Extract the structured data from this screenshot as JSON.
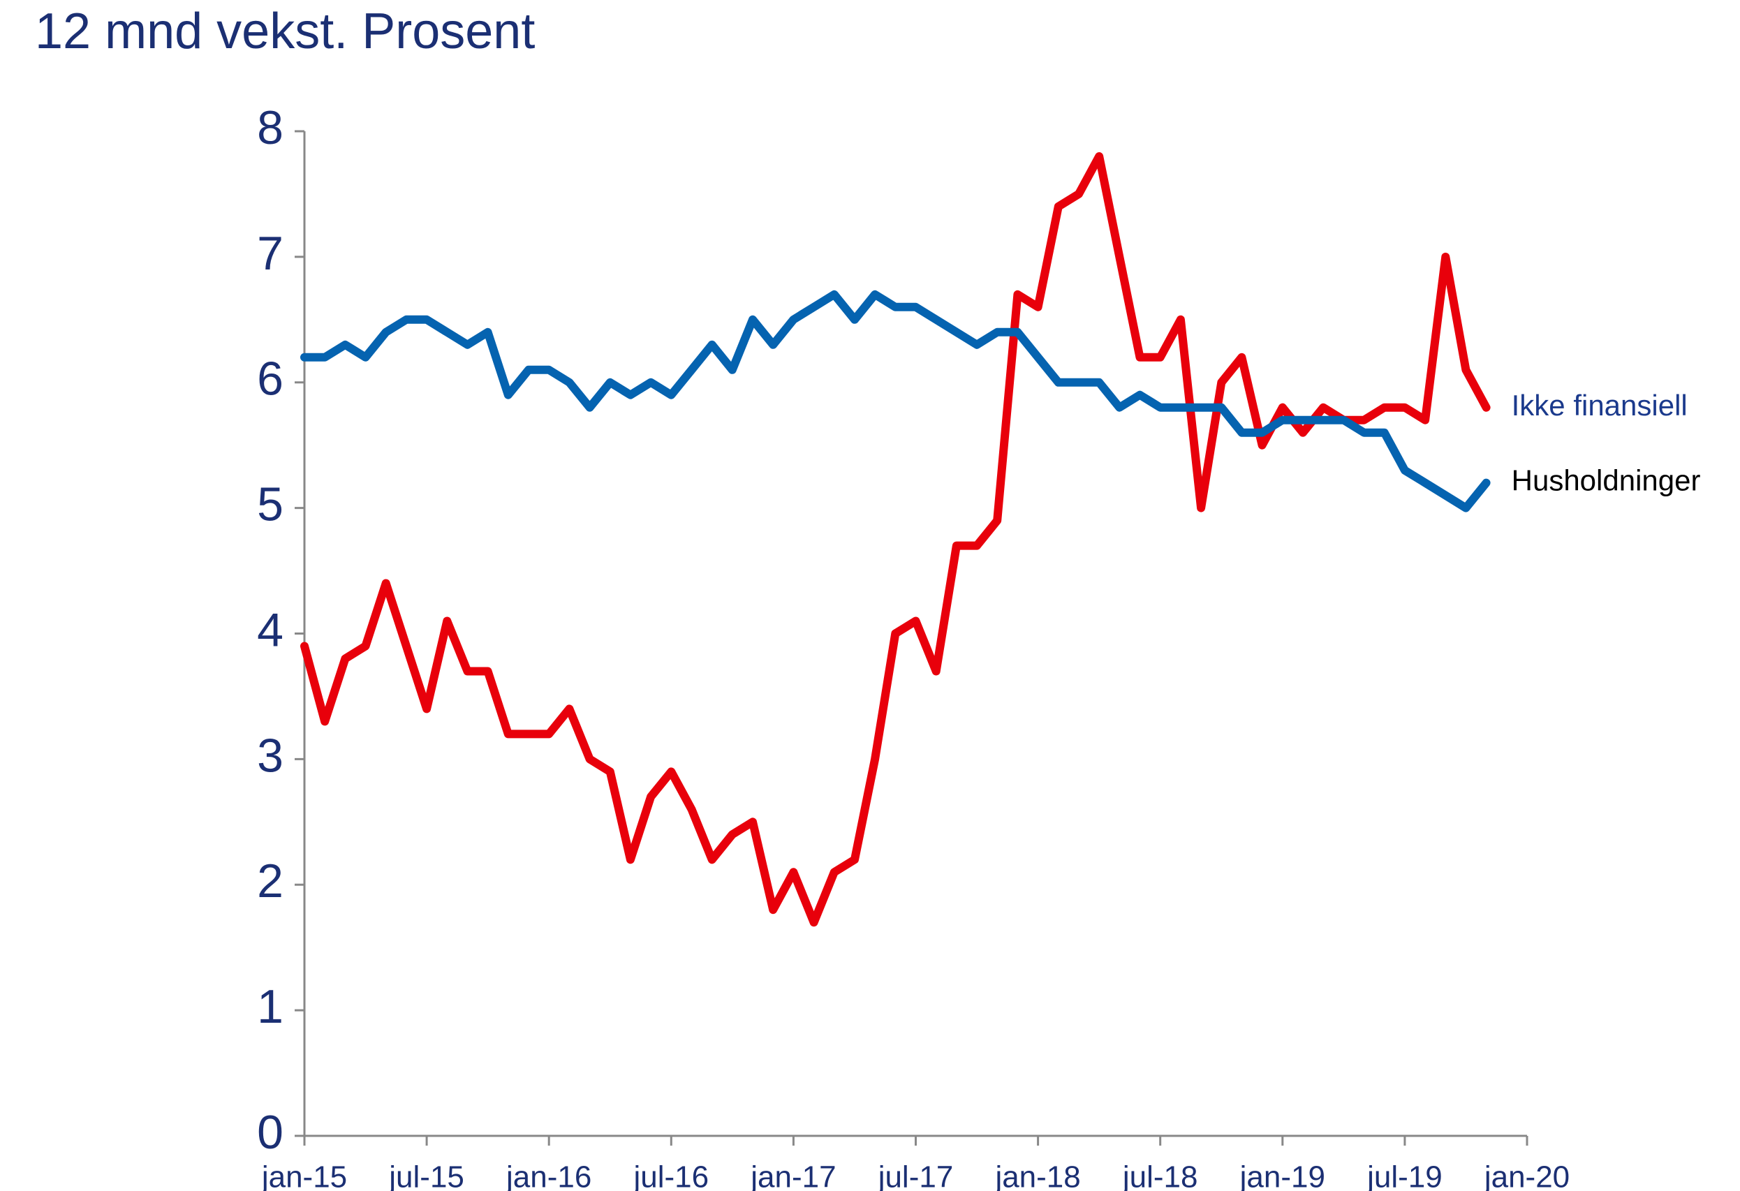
{
  "chart_data": {
    "type": "line",
    "title": "12 mnd vekst. Prosent",
    "x": [
      "2015-01",
      "2015-02",
      "2015-03",
      "2015-04",
      "2015-05",
      "2015-06",
      "2015-07",
      "2015-08",
      "2015-09",
      "2015-10",
      "2015-11",
      "2015-12",
      "2016-01",
      "2016-02",
      "2016-03",
      "2016-04",
      "2016-05",
      "2016-06",
      "2016-07",
      "2016-08",
      "2016-09",
      "2016-10",
      "2016-11",
      "2016-12",
      "2017-01",
      "2017-02",
      "2017-03",
      "2017-04",
      "2017-05",
      "2017-06",
      "2017-07",
      "2017-08",
      "2017-09",
      "2017-10",
      "2017-11",
      "2017-12",
      "2018-01",
      "2018-02",
      "2018-03",
      "2018-04",
      "2018-05",
      "2018-06",
      "2018-07",
      "2018-08",
      "2018-09",
      "2018-10",
      "2018-11",
      "2018-12",
      "2019-01",
      "2019-02",
      "2019-03",
      "2019-04",
      "2019-05",
      "2019-06",
      "2019-07",
      "2019-08",
      "2019-09",
      "2019-10",
      "2019-11"
    ],
    "series": [
      {
        "name": "Ikke finansiell",
        "color": "#e8000b",
        "label_color": "#1b3a8c",
        "values": [
          3.9,
          3.3,
          3.8,
          3.9,
          4.4,
          3.9,
          3.4,
          4.1,
          3.7,
          3.7,
          3.2,
          3.2,
          3.2,
          3.4,
          3.0,
          2.9,
          2.2,
          2.7,
          2.9,
          2.6,
          2.2,
          2.4,
          2.5,
          1.8,
          2.1,
          1.7,
          2.1,
          2.2,
          3.0,
          4.0,
          4.1,
          3.7,
          4.7,
          4.7,
          4.9,
          6.7,
          6.6,
          7.4,
          7.5,
          7.8,
          7.0,
          6.2,
          6.2,
          6.5,
          5.0,
          6.0,
          6.2,
          5.5,
          5.8,
          5.6,
          5.8,
          5.7,
          5.7,
          5.8,
          5.8,
          5.7,
          7.0,
          6.1,
          5.8
        ]
      },
      {
        "name": "Husholdninger",
        "color": "#0563b0",
        "label_color": "#000000",
        "values": [
          6.2,
          6.2,
          6.3,
          6.2,
          6.4,
          6.5,
          6.5,
          6.4,
          6.3,
          6.4,
          5.9,
          6.1,
          6.1,
          6.0,
          5.8,
          6.0,
          5.9,
          6.0,
          5.9,
          6.1,
          6.3,
          6.1,
          6.5,
          6.3,
          6.5,
          6.6,
          6.7,
          6.5,
          6.7,
          6.6,
          6.6,
          6.5,
          6.4,
          6.3,
          6.4,
          6.4,
          6.2,
          6.0,
          6.0,
          6.0,
          5.8,
          5.9,
          5.8,
          5.8,
          5.8,
          5.8,
          5.6,
          5.6,
          5.7,
          5.7,
          5.7,
          5.7,
          5.6,
          5.6,
          5.3,
          5.2,
          5.1,
          5.0,
          5.2
        ]
      }
    ],
    "xlim": [
      "2015-01",
      "2020-01"
    ],
    "xticks": [
      {
        "value": "2015-01",
        "label": "jan-15"
      },
      {
        "value": "2015-07",
        "label": "jul-15"
      },
      {
        "value": "2016-01",
        "label": "jan-16"
      },
      {
        "value": "2016-07",
        "label": "jul-16"
      },
      {
        "value": "2017-01",
        "label": "jan-17"
      },
      {
        "value": "2017-07",
        "label": "jul-17"
      },
      {
        "value": "2018-01",
        "label": "jan-18"
      },
      {
        "value": "2018-07",
        "label": "jul-18"
      },
      {
        "value": "2019-01",
        "label": "jan-19"
      },
      {
        "value": "2019-07",
        "label": "jul-19"
      },
      {
        "value": "2020-01",
        "label": "jan-20"
      }
    ],
    "ylim": [
      0,
      8
    ],
    "yticks": [
      0,
      1,
      2,
      3,
      4,
      5,
      6,
      7,
      8
    ],
    "grid": false
  }
}
